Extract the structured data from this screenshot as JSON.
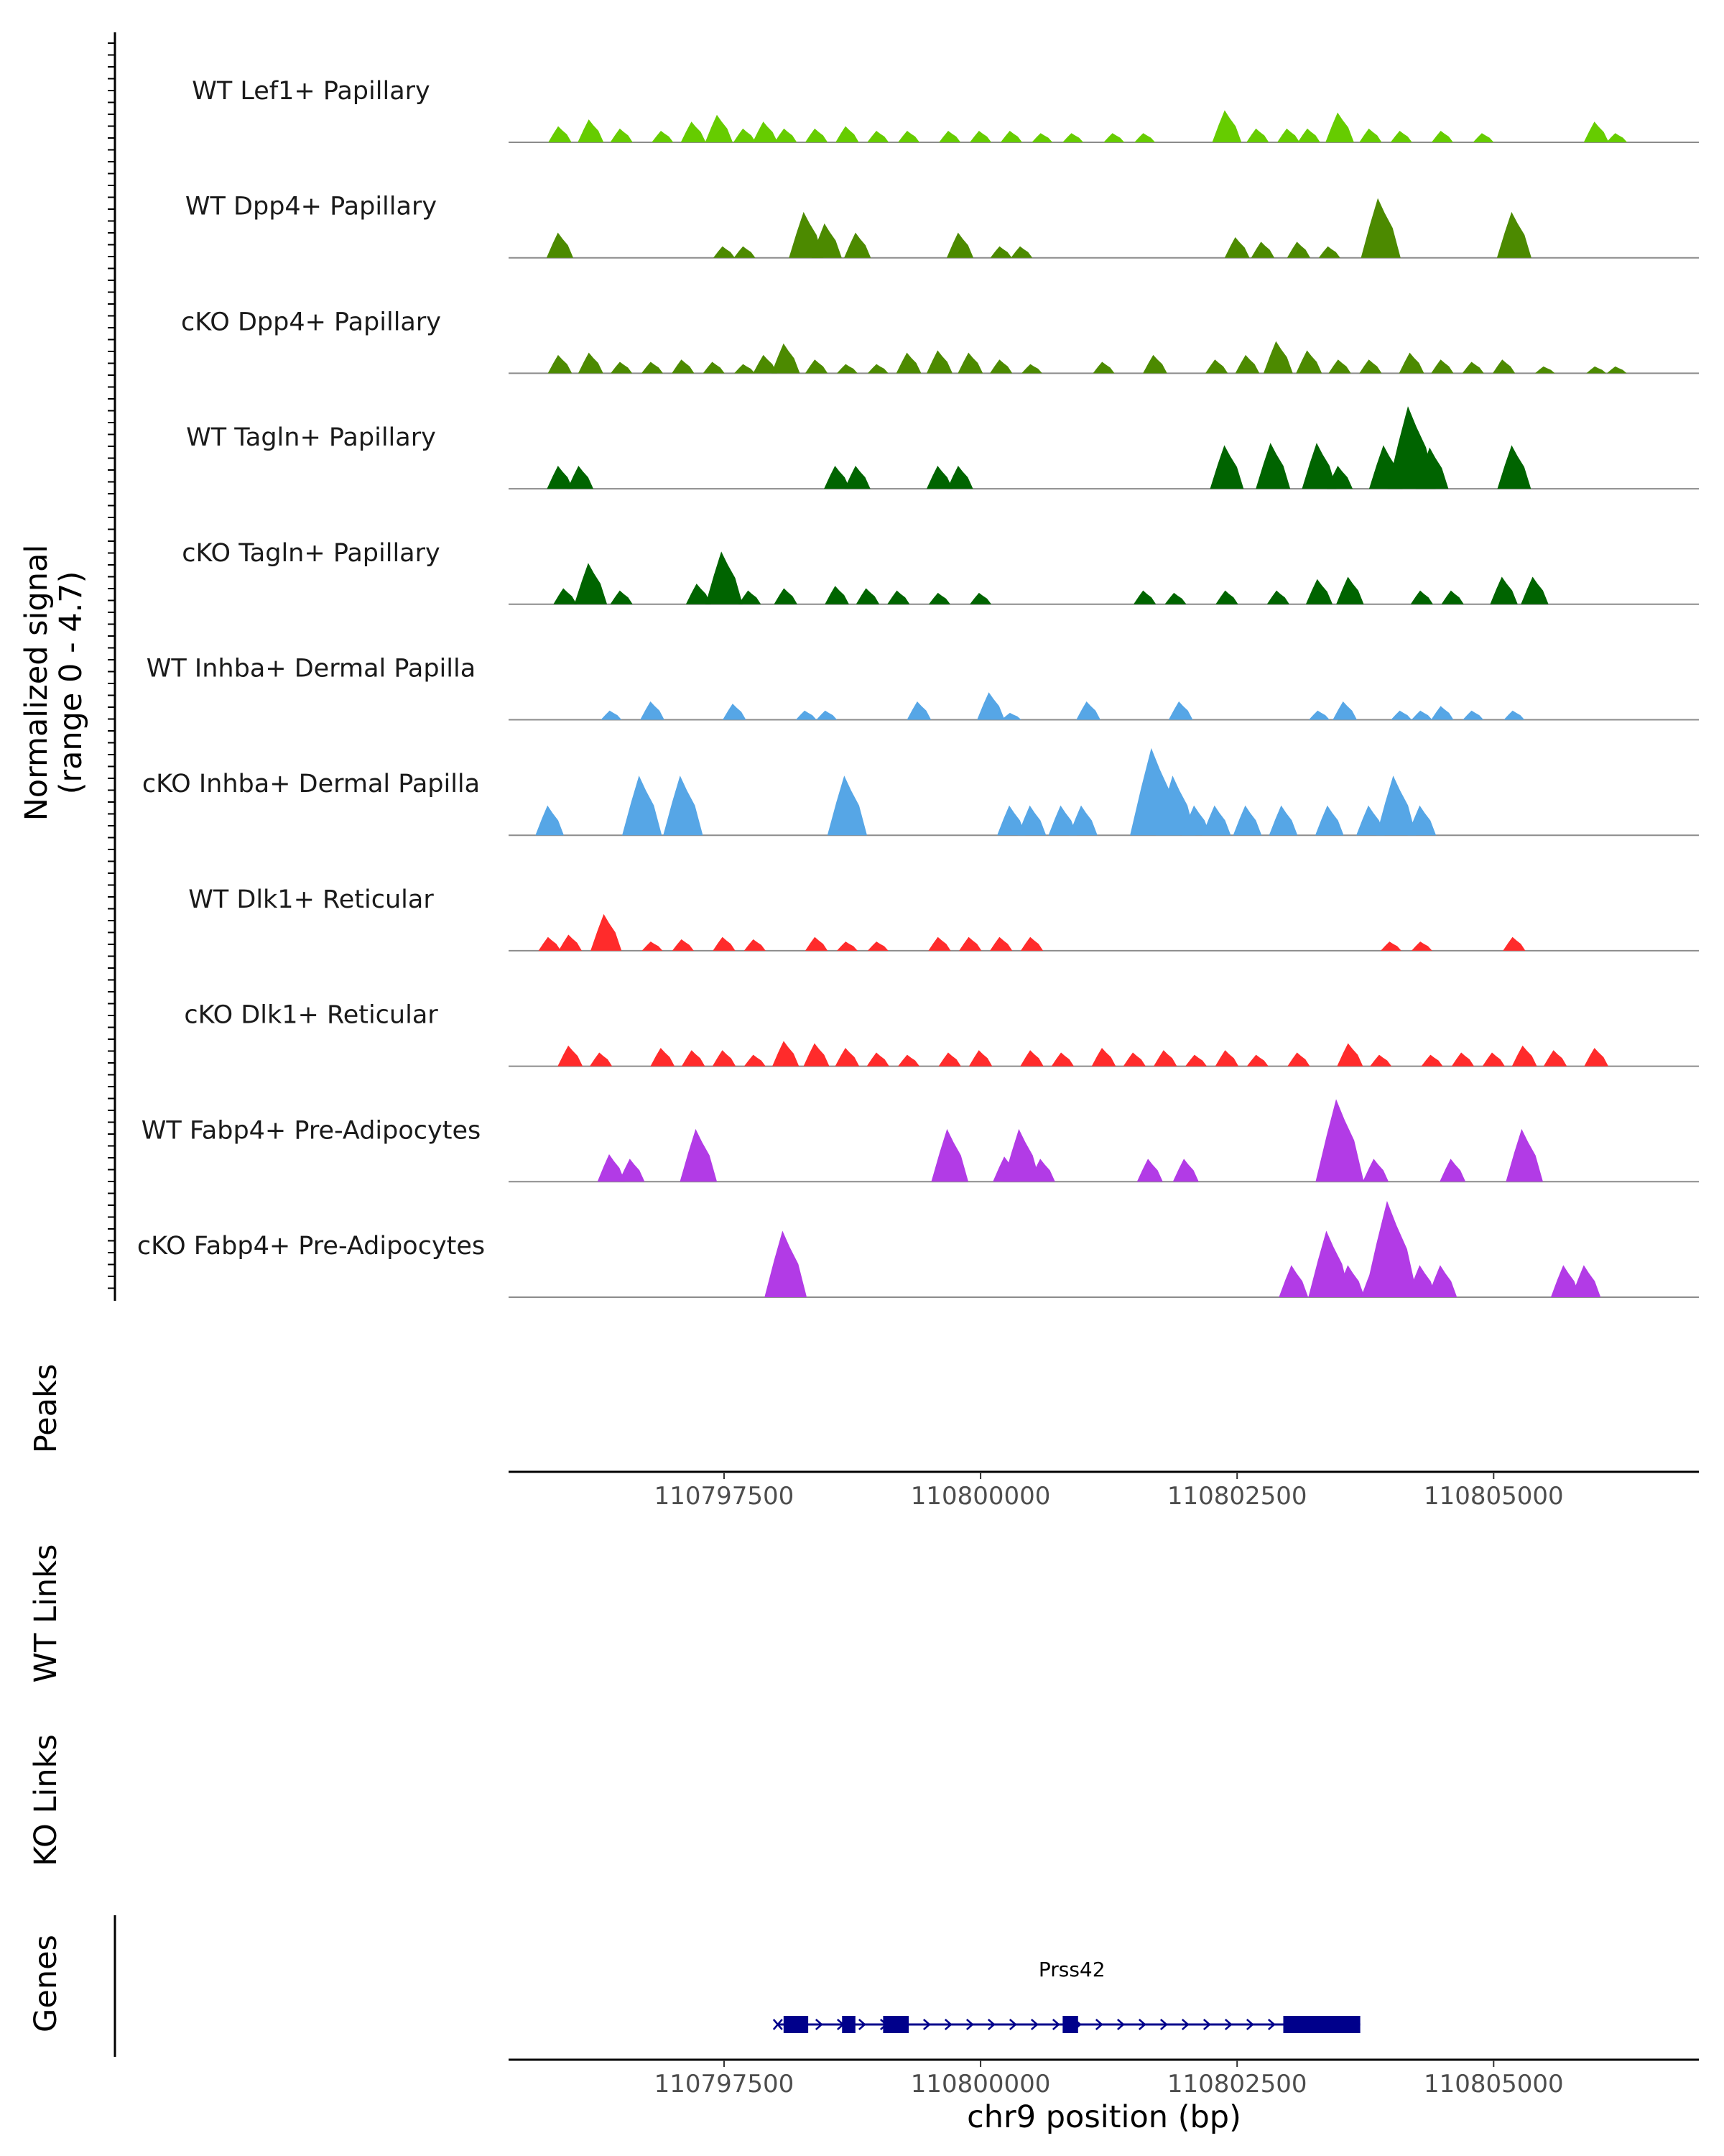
{
  "chart_data": {
    "type": "area",
    "title": "",
    "region": "chr9",
    "ylabel": "Normalized signal",
    "ylabel_range": "(range 0 - 4.7)",
    "ylim": [
      0,
      4.7
    ],
    "xlabel": "chr9 position (bp)",
    "xlim": [
      110795400,
      110807000
    ],
    "x_ticks": [
      110797500,
      110800000,
      110802500,
      110805000
    ],
    "x_tick_labels": [
      "110797500",
      "110800000",
      "110802500",
      "110805000"
    ],
    "panel_labels": {
      "peaks": "Peaks",
      "wt_links": "WT Links",
      "ko_links": "KO Links",
      "genes": "Genes"
    },
    "tracks": [
      {
        "name": "WT Lef1+ Papillary",
        "color": "#66cc00",
        "peaks": [
          [
            110795900,
            0.7
          ],
          [
            110796200,
            1.0
          ],
          [
            110796500,
            0.6
          ],
          [
            110796900,
            0.5
          ],
          [
            110797200,
            0.9
          ],
          [
            110797450,
            1.2
          ],
          [
            110797700,
            0.6
          ],
          [
            110797900,
            0.9
          ],
          [
            110798100,
            0.6
          ],
          [
            110798400,
            0.6
          ],
          [
            110798700,
            0.7
          ],
          [
            110799000,
            0.5
          ],
          [
            110799300,
            0.5
          ],
          [
            110799700,
            0.5
          ],
          [
            110800000,
            0.5
          ],
          [
            110800300,
            0.5
          ],
          [
            110800600,
            0.4
          ],
          [
            110800900,
            0.4
          ],
          [
            110801300,
            0.4
          ],
          [
            110801600,
            0.4
          ],
          [
            110802400,
            1.4
          ],
          [
            110802700,
            0.6
          ],
          [
            110803000,
            0.6
          ],
          [
            110803200,
            0.6
          ],
          [
            110803500,
            1.3
          ],
          [
            110803800,
            0.6
          ],
          [
            110804100,
            0.5
          ],
          [
            110804500,
            0.5
          ],
          [
            110804900,
            0.4
          ],
          [
            110806000,
            0.9
          ],
          [
            110806200,
            0.4
          ]
        ]
      },
      {
        "name": "WT Dpp4+ Papillary",
        "color": "#4c8a00",
        "peaks": [
          [
            110795900,
            1.1
          ],
          [
            110797500,
            0.5
          ],
          [
            110797700,
            0.5
          ],
          [
            110798300,
            2.0
          ],
          [
            110798500,
            1.5
          ],
          [
            110798800,
            1.1
          ],
          [
            110799800,
            1.1
          ],
          [
            110800200,
            0.5
          ],
          [
            110800400,
            0.5
          ],
          [
            110802500,
            0.9
          ],
          [
            110802750,
            0.7
          ],
          [
            110803100,
            0.7
          ],
          [
            110803400,
            0.5
          ],
          [
            110803900,
            2.6
          ],
          [
            110805200,
            2.0
          ]
        ]
      },
      {
        "name": "cKO Dpp4+ Papillary",
        "color": "#4c8a00",
        "peaks": [
          [
            110795900,
            0.8
          ],
          [
            110796200,
            0.9
          ],
          [
            110796500,
            0.5
          ],
          [
            110796800,
            0.5
          ],
          [
            110797100,
            0.6
          ],
          [
            110797400,
            0.5
          ],
          [
            110797700,
            0.4
          ],
          [
            110797900,
            0.8
          ],
          [
            110798100,
            1.3
          ],
          [
            110798400,
            0.6
          ],
          [
            110798700,
            0.4
          ],
          [
            110799000,
            0.4
          ],
          [
            110799300,
            0.9
          ],
          [
            110799600,
            1.0
          ],
          [
            110799900,
            0.9
          ],
          [
            110800200,
            0.6
          ],
          [
            110800500,
            0.4
          ],
          [
            110801200,
            0.5
          ],
          [
            110801700,
            0.8
          ],
          [
            110802300,
            0.6
          ],
          [
            110802600,
            0.8
          ],
          [
            110802900,
            1.4
          ],
          [
            110803200,
            1.0
          ],
          [
            110803500,
            0.6
          ],
          [
            110803800,
            0.6
          ],
          [
            110804200,
            0.9
          ],
          [
            110804500,
            0.6
          ],
          [
            110804800,
            0.5
          ],
          [
            110805100,
            0.6
          ],
          [
            110805500,
            0.3
          ],
          [
            110806000,
            0.3
          ],
          [
            110806200,
            0.3
          ]
        ]
      },
      {
        "name": "WT Tagln+ Papillary",
        "color": "#006400",
        "peaks": [
          [
            110795900,
            1.0
          ],
          [
            110796100,
            1.0
          ],
          [
            110798600,
            1.0
          ],
          [
            110798800,
            1.0
          ],
          [
            110799600,
            1.0
          ],
          [
            110799800,
            1.0
          ],
          [
            110802400,
            1.9
          ],
          [
            110802850,
            2.0
          ],
          [
            110803300,
            2.0
          ],
          [
            110803500,
            1.0
          ],
          [
            110803950,
            1.9
          ],
          [
            110804200,
            3.6
          ],
          [
            110804400,
            1.8
          ],
          [
            110805200,
            1.9
          ]
        ]
      },
      {
        "name": "cKO Tagln+ Papillary",
        "color": "#006400",
        "peaks": [
          [
            110795950,
            0.7
          ],
          [
            110796200,
            1.8
          ],
          [
            110796500,
            0.6
          ],
          [
            110797250,
            0.9
          ],
          [
            110797500,
            2.3
          ],
          [
            110797750,
            0.6
          ],
          [
            110798100,
            0.7
          ],
          [
            110798600,
            0.8
          ],
          [
            110798900,
            0.7
          ],
          [
            110799200,
            0.6
          ],
          [
            110799600,
            0.5
          ],
          [
            110800000,
            0.5
          ],
          [
            110801600,
            0.6
          ],
          [
            110801900,
            0.5
          ],
          [
            110802400,
            0.6
          ],
          [
            110802900,
            0.6
          ],
          [
            110803300,
            1.1
          ],
          [
            110803600,
            1.2
          ],
          [
            110804300,
            0.6
          ],
          [
            110804600,
            0.6
          ],
          [
            110805100,
            1.2
          ],
          [
            110805400,
            1.2
          ]
        ]
      },
      {
        "name": "WT Inhba+ Dermal Papilla",
        "color": "#56a6e6",
        "peaks": [
          [
            110796400,
            0.4
          ],
          [
            110796800,
            0.8
          ],
          [
            110797600,
            0.7
          ],
          [
            110798300,
            0.4
          ],
          [
            110798500,
            0.4
          ],
          [
            110799400,
            0.8
          ],
          [
            110800100,
            1.2
          ],
          [
            110800300,
            0.3
          ],
          [
            110801050,
            0.8
          ],
          [
            110801950,
            0.8
          ],
          [
            110803300,
            0.4
          ],
          [
            110803550,
            0.8
          ],
          [
            110804100,
            0.4
          ],
          [
            110804300,
            0.4
          ],
          [
            110804500,
            0.6
          ],
          [
            110804800,
            0.4
          ],
          [
            110805200,
            0.4
          ]
        ]
      },
      {
        "name": "cKO Inhba+ Dermal Papilla",
        "color": "#56a6e6",
        "peaks": [
          [
            110795800,
            1.3
          ],
          [
            110796700,
            2.6
          ],
          [
            110797100,
            2.6
          ],
          [
            110798700,
            2.6
          ],
          [
            110800300,
            1.3
          ],
          [
            110800500,
            1.3
          ],
          [
            110800800,
            1.3
          ],
          [
            110801000,
            1.3
          ],
          [
            110801700,
            3.8
          ],
          [
            110801900,
            2.6
          ],
          [
            110802100,
            1.3
          ],
          [
            110802300,
            1.3
          ],
          [
            110802600,
            1.3
          ],
          [
            110802950,
            1.3
          ],
          [
            110803400,
            1.3
          ],
          [
            110803800,
            1.3
          ],
          [
            110804050,
            2.6
          ],
          [
            110804300,
            1.3
          ]
        ]
      },
      {
        "name": "WT Dlk1+ Reticular",
        "color": "#ff2b2b",
        "peaks": [
          [
            110795800,
            0.6
          ],
          [
            110796000,
            0.7
          ],
          [
            110796350,
            1.6
          ],
          [
            110796800,
            0.4
          ],
          [
            110797100,
            0.5
          ],
          [
            110797500,
            0.6
          ],
          [
            110797800,
            0.5
          ],
          [
            110798400,
            0.6
          ],
          [
            110798700,
            0.4
          ],
          [
            110799000,
            0.4
          ],
          [
            110799600,
            0.6
          ],
          [
            110799900,
            0.6
          ],
          [
            110800200,
            0.6
          ],
          [
            110800500,
            0.6
          ],
          [
            110804000,
            0.4
          ],
          [
            110804300,
            0.4
          ],
          [
            110805200,
            0.6
          ]
        ]
      },
      {
        "name": "cKO Dlk1+ Reticular",
        "color": "#ff2b2b",
        "peaks": [
          [
            110796000,
            0.9
          ],
          [
            110796300,
            0.6
          ],
          [
            110796900,
            0.8
          ],
          [
            110797200,
            0.7
          ],
          [
            110797500,
            0.7
          ],
          [
            110797800,
            0.5
          ],
          [
            110798100,
            1.1
          ],
          [
            110798400,
            1.0
          ],
          [
            110798700,
            0.8
          ],
          [
            110799000,
            0.6
          ],
          [
            110799300,
            0.5
          ],
          [
            110799700,
            0.6
          ],
          [
            110800000,
            0.7
          ],
          [
            110800500,
            0.7
          ],
          [
            110800800,
            0.6
          ],
          [
            110801200,
            0.8
          ],
          [
            110801500,
            0.6
          ],
          [
            110801800,
            0.7
          ],
          [
            110802100,
            0.5
          ],
          [
            110802400,
            0.7
          ],
          [
            110802700,
            0.5
          ],
          [
            110803100,
            0.6
          ],
          [
            110803600,
            1.0
          ],
          [
            110803900,
            0.5
          ],
          [
            110804400,
            0.5
          ],
          [
            110804700,
            0.6
          ],
          [
            110805000,
            0.6
          ],
          [
            110805300,
            0.9
          ],
          [
            110805600,
            0.7
          ],
          [
            110806000,
            0.8
          ]
        ]
      },
      {
        "name": "WT Fabp4+ Pre-Adipocytes",
        "color": "#b23be6",
        "peaks": [
          [
            110796400,
            1.2
          ],
          [
            110796600,
            1.0
          ],
          [
            110797250,
            2.3
          ],
          [
            110799700,
            2.3
          ],
          [
            110800250,
            1.1
          ],
          [
            110800400,
            2.3
          ],
          [
            110800600,
            1.0
          ],
          [
            110801650,
            1.0
          ],
          [
            110802000,
            1.0
          ],
          [
            110803500,
            3.6
          ],
          [
            110803850,
            1.0
          ],
          [
            110804600,
            1.0
          ],
          [
            110805300,
            2.3
          ]
        ]
      },
      {
        "name": "cKO Fabp4+ Pre-Adipocytes",
        "color": "#b23be6",
        "peaks": [
          [
            110798100,
            2.9
          ],
          [
            110803050,
            1.4
          ],
          [
            110803400,
            2.9
          ],
          [
            110803600,
            1.4
          ],
          [
            110803850,
            1.4
          ],
          [
            110804000,
            4.2
          ],
          [
            110804300,
            1.4
          ],
          [
            110804500,
            1.4
          ],
          [
            110805700,
            1.4
          ],
          [
            110805900,
            1.4
          ]
        ]
      }
    ],
    "genes": [
      {
        "name": "Prss42",
        "strand": "+",
        "start": 110798080,
        "end": 110803700,
        "exons": [
          [
            110798080,
            110798320
          ],
          [
            110798650,
            110798780
          ],
          [
            110799050,
            110799300
          ],
          [
            110800800,
            110800950
          ],
          [
            110802950,
            110803700
          ]
        ]
      }
    ]
  }
}
